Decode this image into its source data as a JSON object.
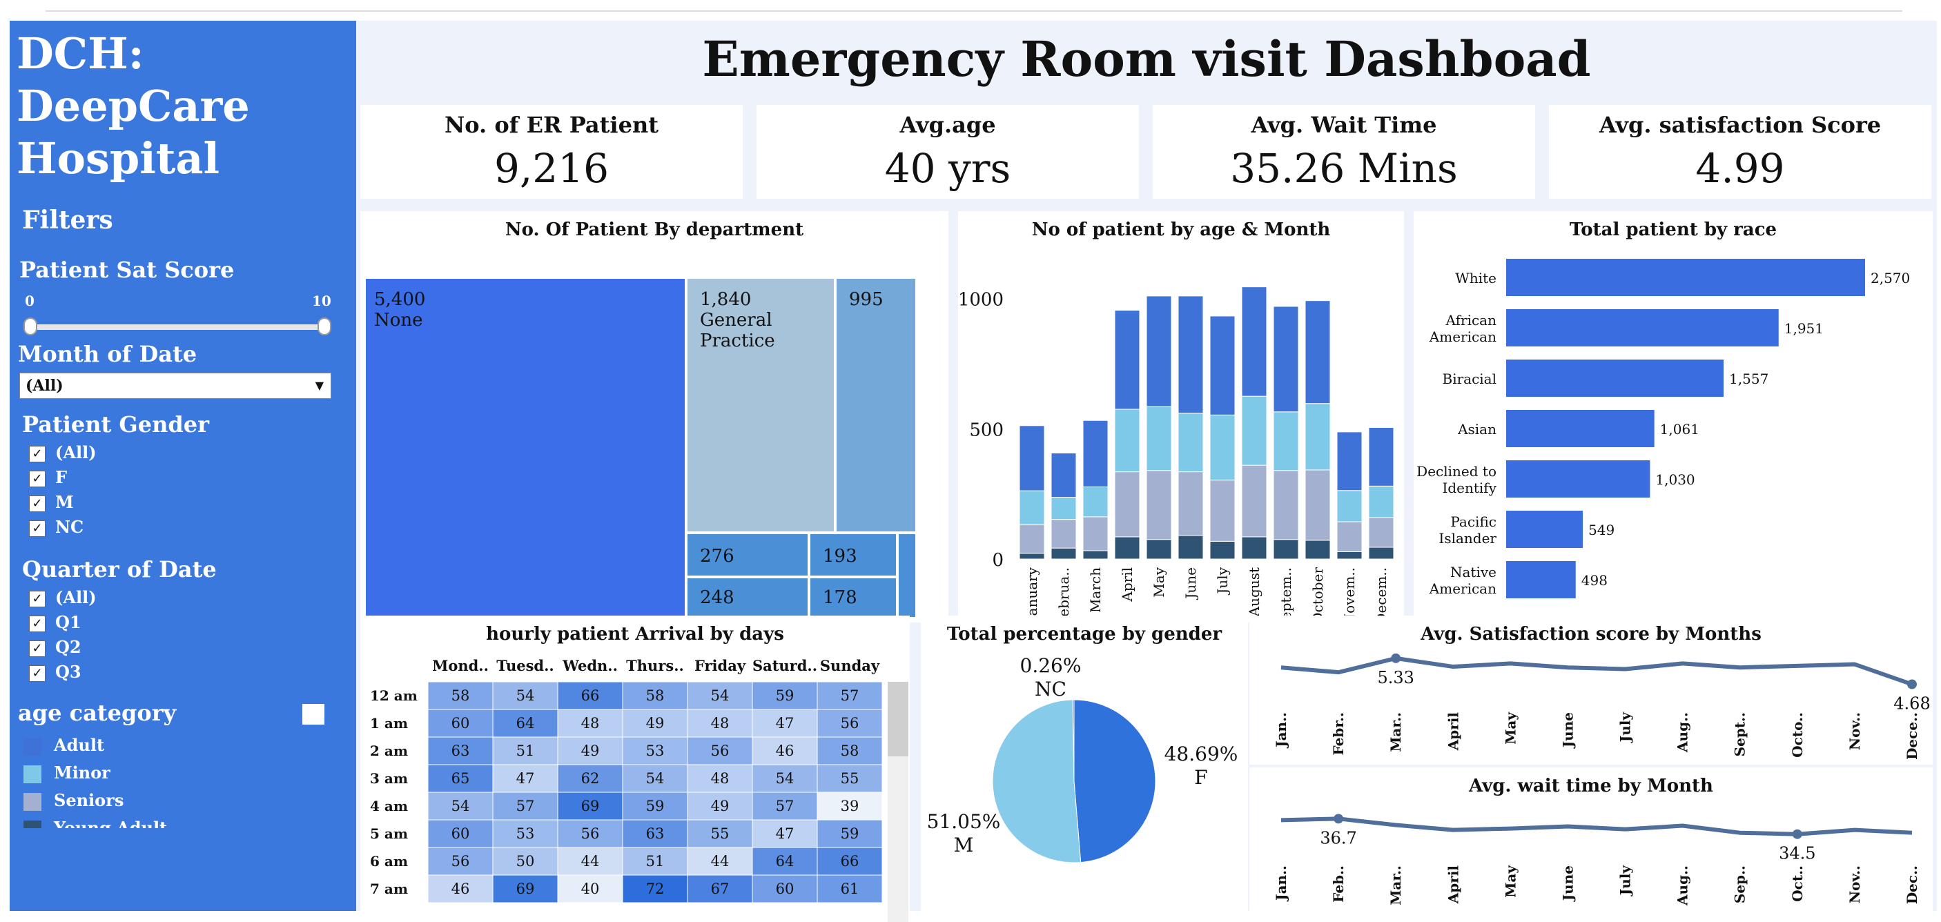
{
  "sidebar": {
    "brand_line1": "DCH:",
    "brand_line2": "DeepCare",
    "brand_line3": "Hospital",
    "filters_label": "Filters",
    "sat_score": {
      "label": "Patient Sat Score",
      "min": "0",
      "max": "10"
    },
    "month": {
      "label": "Month of Date",
      "selected": "(All)"
    },
    "gender": {
      "label": "Patient Gender",
      "options": [
        "(All)",
        "F",
        "M",
        "NC"
      ]
    },
    "quarter": {
      "label": "Quarter of Date",
      "options": [
        "(All)",
        "Q1",
        "Q2",
        "Q3"
      ]
    },
    "age_category": {
      "label": "age category",
      "items": [
        "Adult",
        "Minor",
        "Seniors",
        "Young Adult"
      ]
    }
  },
  "header": {
    "title": "Emergency Room visit Dashboad"
  },
  "kpis": [
    {
      "label": "No. of ER Patient",
      "value": "9,216"
    },
    {
      "label": "Avg.age",
      "value": "40 yrs"
    },
    {
      "label": "Avg. Wait Time",
      "value": "35.26 Mins"
    },
    {
      "label": "Avg. satisfaction Score",
      "value": "4.99"
    }
  ],
  "colors": {
    "sidebar": "#3b78de",
    "adult": "#3f72d6",
    "minor": "#7ec8e8",
    "seniors": "#a3b0d0",
    "young_adult": "#2f5373",
    "line": "#4f6f9a",
    "pie_f": "#2f72dc",
    "pie_m": "#86cbea",
    "race_bar": "#3a6ee0"
  },
  "chart_data": [
    {
      "type": "treemap",
      "title": "No. Of Patient By department",
      "items": [
        {
          "value": "5,400",
          "name": "None"
        },
        {
          "value": "1,840",
          "name": "General Practice"
        },
        {
          "value": "995",
          "name": ""
        },
        {
          "value": "276",
          "name": ""
        },
        {
          "value": "193",
          "name": ""
        },
        {
          "value": "248",
          "name": ""
        },
        {
          "value": "178",
          "name": ""
        }
      ]
    },
    {
      "type": "bar",
      "stacked": true,
      "title": "No of patient by age & Month",
      "categories": [
        "January",
        "Februa..",
        "March",
        "April",
        "May",
        "June",
        "July",
        "August",
        "Septem..",
        "October",
        "Novem..",
        "Decem.."
      ],
      "yticks": [
        "0",
        "500",
        "1000"
      ],
      "ylim": [
        0,
        1060
      ],
      "series": [
        {
          "name": "Young Adult",
          "values": [
            22,
            42,
            32,
            85,
            75,
            90,
            68,
            85,
            75,
            72,
            28,
            45
          ]
        },
        {
          "name": "Seniors",
          "values": [
            110,
            110,
            130,
            250,
            265,
            245,
            235,
            275,
            265,
            270,
            115,
            115
          ]
        },
        {
          "name": "Minor",
          "values": [
            130,
            85,
            115,
            240,
            245,
            225,
            250,
            265,
            225,
            255,
            120,
            120
          ]
        },
        {
          "name": "Adult",
          "values": [
            250,
            170,
            255,
            380,
            425,
            450,
            380,
            420,
            405,
            395,
            225,
            225
          ]
        }
      ]
    },
    {
      "type": "bar",
      "orientation": "horizontal",
      "title": "Total patient by race",
      "categories": [
        [
          "White"
        ],
        [
          "African",
          "American"
        ],
        [
          "Biracial"
        ],
        [
          "Asian"
        ],
        [
          "Declined to",
          "Identify"
        ],
        [
          "Pacific",
          "Islander"
        ],
        [
          "Native",
          "American"
        ]
      ],
      "values": [
        2570,
        1951,
        1557,
        1061,
        1030,
        549,
        498
      ],
      "value_labels": [
        "2,570",
        "1,951",
        "1,557",
        "1,061",
        "1,030",
        "549",
        "498"
      ],
      "xlim": [
        0,
        2570
      ]
    },
    {
      "type": "heatmap",
      "title": "hourly patient Arrival by days",
      "columns": [
        "Mond..",
        "Tuesd..",
        "Wedn..",
        "Thurs..",
        "Friday",
        "Saturd..",
        "Sunday"
      ],
      "rows": [
        "12 am",
        "1 am",
        "2 am",
        "3 am",
        "4 am",
        "5 am",
        "6 am",
        "7 am"
      ],
      "values": [
        [
          58,
          54,
          66,
          58,
          54,
          59,
          57
        ],
        [
          60,
          64,
          48,
          49,
          48,
          47,
          56
        ],
        [
          63,
          51,
          49,
          53,
          56,
          46,
          58
        ],
        [
          65,
          47,
          62,
          54,
          48,
          54,
          55
        ],
        [
          54,
          57,
          69,
          59,
          49,
          57,
          39
        ],
        [
          60,
          53,
          56,
          63,
          55,
          47,
          59
        ],
        [
          56,
          50,
          44,
          51,
          44,
          64,
          66
        ],
        [
          46,
          69,
          40,
          72,
          67,
          60,
          61
        ]
      ],
      "range": [
        39,
        72
      ]
    },
    {
      "type": "pie",
      "title": "Total percentage by gender",
      "slices": [
        {
          "name": "F",
          "label": "48.69%",
          "value": 48.69
        },
        {
          "name": "M",
          "label": "51.05%",
          "value": 51.05
        },
        {
          "name": "NC",
          "label": "0.26%",
          "value": 0.26
        }
      ]
    },
    {
      "type": "line",
      "title": "Avg. Satisfaction score by Months",
      "categories": [
        "Jan..",
        "Febr..",
        "Mar..",
        "April",
        "May",
        "June",
        "July",
        "Aug..",
        "Sept..",
        "Octo..",
        "Nov..",
        "Dece.."
      ],
      "values": [
        5.1,
        4.98,
        5.33,
        5.12,
        5.2,
        5.1,
        5.06,
        5.2,
        5.1,
        5.14,
        5.18,
        4.68
      ],
      "ylim": [
        4.5,
        5.5
      ],
      "labels": [
        {
          "index": 2,
          "text": "5.33"
        },
        {
          "index": 11,
          "text": "4.68"
        }
      ]
    },
    {
      "type": "line",
      "title": "Avg. wait time by Month",
      "categories": [
        "Jan..",
        "Feb..",
        "Mar..",
        "April",
        "May",
        "June",
        "July",
        "Aug..",
        "Sep..",
        "Oct..",
        "Nov..",
        "Dec.."
      ],
      "values": [
        36.5,
        36.7,
        35.8,
        35.1,
        35.3,
        35.6,
        35.2,
        35.7,
        34.7,
        34.5,
        35.1,
        34.7
      ],
      "ylim": [
        33,
        38.5
      ],
      "labels": [
        {
          "index": 1,
          "text": "36.7"
        },
        {
          "index": 9,
          "text": "34.5"
        }
      ]
    }
  ]
}
